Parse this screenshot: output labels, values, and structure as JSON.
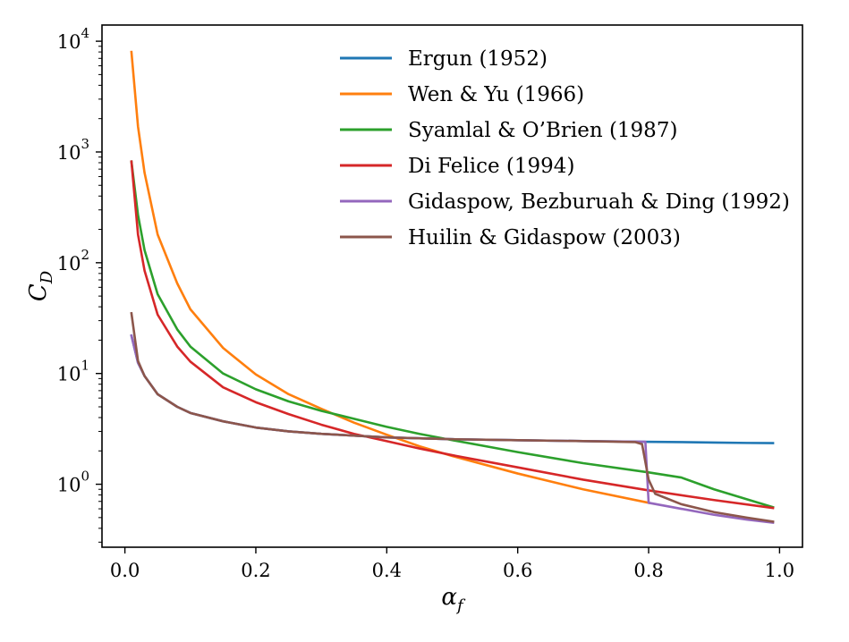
{
  "chart_data": {
    "type": "line",
    "xscale": "linear",
    "yscale": "log",
    "xlabel": "αf",
    "xlabel_main": "α",
    "xlabel_sub": "f",
    "ylabel": "CD",
    "ylabel_main": "C",
    "ylabel_sub": "D",
    "xlim": [
      -0.035,
      1.035
    ],
    "ylim": [
      0.27,
      14000
    ],
    "xticks": [
      {
        "value": 0.0,
        "label": "0.0"
      },
      {
        "value": 0.2,
        "label": "0.2"
      },
      {
        "value": 0.4,
        "label": "0.4"
      },
      {
        "value": 0.6,
        "label": "0.6"
      },
      {
        "value": 0.8,
        "label": "0.8"
      },
      {
        "value": 1.0,
        "label": "1.0"
      }
    ],
    "yticks": [
      {
        "value": 1,
        "base": "10",
        "exp": "0"
      },
      {
        "value": 10,
        "base": "10",
        "exp": "1"
      },
      {
        "value": 100,
        "base": "10",
        "exp": "2"
      },
      {
        "value": 1000,
        "base": "10",
        "exp": "3"
      },
      {
        "value": 10000,
        "base": "10",
        "exp": "4"
      }
    ],
    "legend_position": "top-right",
    "series": [
      {
        "name": "Ergun (1952)",
        "color": "#1f77b4",
        "x": [
          0.01,
          0.02,
          0.03,
          0.05,
          0.08,
          0.1,
          0.15,
          0.2,
          0.25,
          0.3,
          0.35,
          0.4,
          0.45,
          0.5,
          0.6,
          0.7,
          0.79,
          0.85,
          0.9,
          0.95,
          0.99
        ],
        "y": [
          22,
          12.5,
          9.5,
          6.5,
          5.0,
          4.4,
          3.7,
          3.25,
          3.0,
          2.85,
          2.75,
          2.65,
          2.6,
          2.55,
          2.5,
          2.45,
          2.42,
          2.4,
          2.38,
          2.36,
          2.35
        ]
      },
      {
        "name": "Wen & Yu (1966)",
        "color": "#ff7f0e",
        "x": [
          0.01,
          0.02,
          0.03,
          0.05,
          0.08,
          0.1,
          0.15,
          0.2,
          0.25,
          0.3,
          0.35,
          0.4,
          0.45,
          0.5,
          0.6,
          0.7,
          0.8
        ],
        "y": [
          8000,
          1700,
          650,
          180,
          65,
          38,
          17,
          9.8,
          6.5,
          4.8,
          3.6,
          2.8,
          2.2,
          1.8,
          1.25,
          0.9,
          0.68
        ]
      },
      {
        "name": "Syamlal & O’Brien (1987)",
        "color": "#2ca02c",
        "x": [
          0.01,
          0.02,
          0.03,
          0.05,
          0.08,
          0.1,
          0.15,
          0.2,
          0.25,
          0.3,
          0.35,
          0.4,
          0.45,
          0.5,
          0.6,
          0.7,
          0.8,
          0.85,
          0.9,
          0.99
        ],
        "y": [
          820,
          270,
          130,
          52,
          25,
          17.5,
          10,
          7.2,
          5.6,
          4.6,
          3.9,
          3.3,
          2.85,
          2.5,
          1.95,
          1.55,
          1.28,
          1.15,
          0.9,
          0.62
        ]
      },
      {
        "name": "Di Felice (1994)",
        "color": "#d62728",
        "x": [
          0.01,
          0.02,
          0.03,
          0.05,
          0.08,
          0.1,
          0.15,
          0.2,
          0.25,
          0.3,
          0.35,
          0.4,
          0.45,
          0.5,
          0.6,
          0.7,
          0.8,
          0.9,
          0.99
        ],
        "y": [
          820,
          180,
          85,
          34,
          17.5,
          12.8,
          7.5,
          5.5,
          4.3,
          3.45,
          2.85,
          2.45,
          2.1,
          1.83,
          1.42,
          1.1,
          0.88,
          0.72,
          0.61
        ]
      },
      {
        "name": "Gidaspow, Bezburuah & Ding (1992)",
        "color": "#9467bd",
        "x": [
          0.01,
          0.02,
          0.03,
          0.05,
          0.08,
          0.1,
          0.15,
          0.2,
          0.25,
          0.3,
          0.35,
          0.4,
          0.45,
          0.5,
          0.6,
          0.7,
          0.795,
          0.8,
          0.85,
          0.9,
          0.95,
          0.99
        ],
        "y": [
          22,
          12.5,
          9.5,
          6.5,
          5.0,
          4.4,
          3.7,
          3.25,
          3.0,
          2.85,
          2.75,
          2.65,
          2.6,
          2.55,
          2.5,
          2.45,
          2.42,
          0.68,
          0.6,
          0.53,
          0.48,
          0.45
        ]
      },
      {
        "name": "Huilin & Gidaspow (2003)",
        "color": "#8c564b",
        "x": [
          0.01,
          0.02,
          0.03,
          0.05,
          0.08,
          0.1,
          0.15,
          0.2,
          0.25,
          0.3,
          0.35,
          0.4,
          0.45,
          0.5,
          0.6,
          0.7,
          0.78,
          0.79,
          0.8,
          0.81,
          0.85,
          0.9,
          0.95,
          0.99
        ],
        "y": [
          35,
          13,
          9.5,
          6.5,
          5.0,
          4.4,
          3.7,
          3.25,
          3.0,
          2.85,
          2.75,
          2.65,
          2.6,
          2.55,
          2.5,
          2.45,
          2.4,
          2.3,
          1.1,
          0.82,
          0.66,
          0.56,
          0.5,
          0.46
        ]
      }
    ]
  }
}
